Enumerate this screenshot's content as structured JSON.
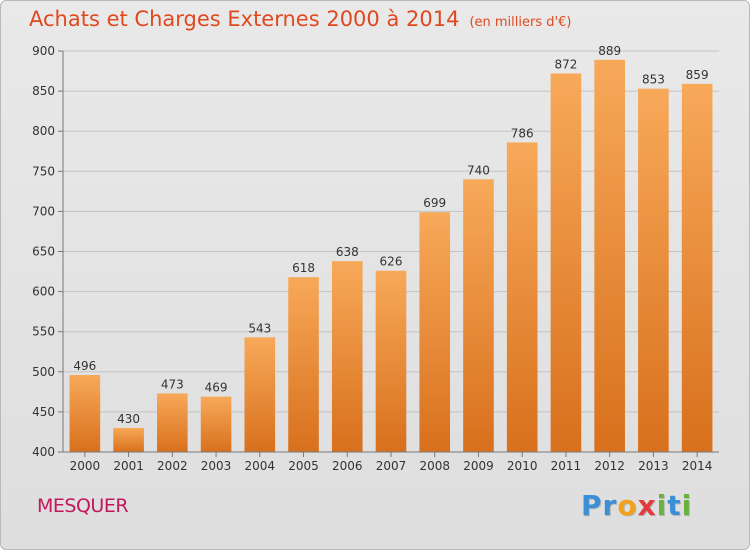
{
  "header": {
    "title": "Achats et Charges Externes 2000 à 2014",
    "subtitle": "(en milliers d'€)"
  },
  "footer": {
    "town": "MESQUER",
    "logo_letters": [
      {
        "ch": "P",
        "color": "#3a8fd6"
      },
      {
        "ch": "r",
        "color": "#3a8fd6"
      },
      {
        "ch": "o",
        "color": "#f2a21a"
      },
      {
        "ch": "x",
        "color": "#e23b3b"
      },
      {
        "ch": "i",
        "color": "#6ab23e"
      },
      {
        "ch": "t",
        "color": "#3a8fd6"
      },
      {
        "ch": "i",
        "color": "#6ab23e"
      }
    ]
  },
  "chart_data": {
    "type": "bar",
    "categories": [
      "2000",
      "2001",
      "2002",
      "2003",
      "2004",
      "2005",
      "2006",
      "2007",
      "2008",
      "2009",
      "2010",
      "2011",
      "2012",
      "2013",
      "2014"
    ],
    "values": [
      496,
      430,
      473,
      469,
      543,
      618,
      638,
      626,
      699,
      740,
      786,
      872,
      889,
      853,
      859
    ],
    "ylim": [
      400,
      900
    ],
    "yticks": [
      400,
      450,
      500,
      550,
      600,
      650,
      700,
      750,
      800,
      850,
      900
    ],
    "grid": true,
    "bar_color_top": "#f7a959",
    "bar_color_bottom": "#d8701d"
  }
}
